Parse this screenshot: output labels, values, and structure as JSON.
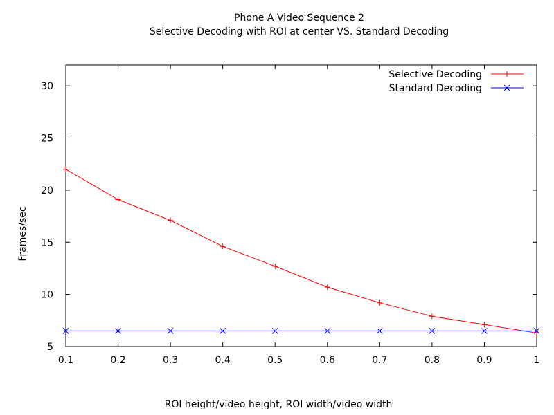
{
  "chart_data": {
    "type": "line",
    "title": "Phone A Video Sequence 2",
    "subtitle": "Selective Decoding with ROI at center VS. Standard Decoding",
    "xlabel": "ROI height/video height, ROI width/video width",
    "ylabel": "Frames/sec",
    "xlim": [
      0.1,
      1.0
    ],
    "ylim": [
      5,
      32
    ],
    "xticks": [
      0.1,
      0.2,
      0.3,
      0.4,
      0.5,
      0.6,
      0.7,
      0.8,
      0.9,
      1.0
    ],
    "xtick_labels": [
      "0.1",
      "0.2",
      "0.3",
      "0.4",
      "0.5",
      "0.6",
      "0.7",
      "0.8",
      "0.9",
      "1"
    ],
    "yticks": [
      5,
      10,
      15,
      20,
      25,
      30
    ],
    "ytick_labels": [
      "5",
      "10",
      "15",
      "20",
      "25",
      "30"
    ],
    "grid": false,
    "legend_position": "top-right",
    "x": [
      0.1,
      0.2,
      0.3,
      0.4,
      0.5,
      0.6,
      0.7,
      0.8,
      0.9,
      1.0
    ],
    "series": [
      {
        "name": "Selective Decoding",
        "color": "#ff0000",
        "marker": "plus",
        "values": [
          22.0,
          19.1,
          17.1,
          14.6,
          12.7,
          10.7,
          9.2,
          7.9,
          7.1,
          6.3
        ]
      },
      {
        "name": "Standard Decoding",
        "color": "#0000ff",
        "marker": "cross",
        "values": [
          6.5,
          6.5,
          6.5,
          6.5,
          6.5,
          6.5,
          6.5,
          6.5,
          6.5,
          6.5
        ]
      }
    ]
  }
}
